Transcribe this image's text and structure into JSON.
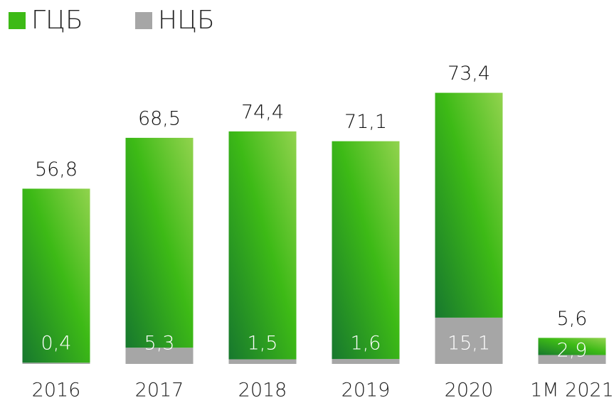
{
  "chart_data": {
    "type": "stacked_bar",
    "categories": [
      "2016",
      "2017",
      "2018",
      "2019",
      "2020",
      "1M 2021"
    ],
    "series": [
      {
        "name": "НЦБ",
        "color": "#a6a6a6",
        "values": [
          0.4,
          5.3,
          1.5,
          1.6,
          15.1,
          2.9
        ],
        "value_labels": [
          "0,4",
          "5,3",
          "1,5",
          "1,6",
          "15,1",
          "2,9"
        ]
      },
      {
        "name": "ГЦБ",
        "color": "#3dba16",
        "values": [
          56.8,
          68.5,
          74.4,
          71.1,
          73.4,
          5.6
        ],
        "value_labels": [
          "56,8",
          "68,5",
          "74,4",
          "71,1",
          "73,4",
          "5,6"
        ]
      }
    ]
  }
}
